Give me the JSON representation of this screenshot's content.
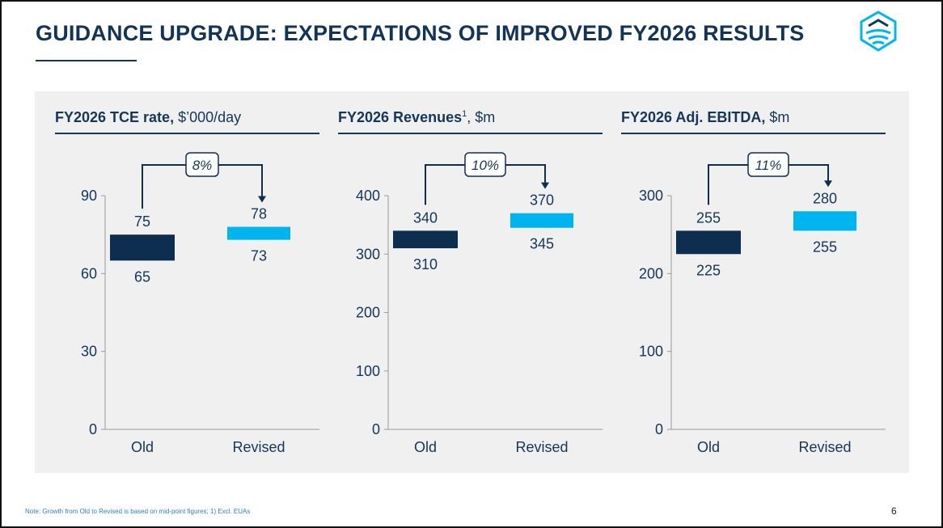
{
  "page": {
    "title": "GUIDANCE UPGRADE: EXPECTATIONS OF IMPROVED FY2026 RESULTS",
    "footnote": "Note: Growth from Old to Revised is based on mid-point figures; 1) Excl. EUAs",
    "page_number": "6",
    "logo_icon": "company-logo-icon"
  },
  "colors": {
    "old_bar": "#0e2e4f",
    "revised_bar": "#00b4f0",
    "text": "#14365a",
    "panel": "#f0f0f0"
  },
  "chart_data": [
    {
      "type": "floating-bar",
      "title_bold": "FY2026 TCE rate,",
      "title_sup": "",
      "title_rest": " $’000/day",
      "categories": [
        "Old",
        "Revised"
      ],
      "ranges": [
        [
          65,
          75
        ],
        [
          73,
          78
        ]
      ],
      "ylim": [
        0,
        90
      ],
      "yticks": [
        0,
        30,
        60,
        90
      ],
      "growth_label": "8%",
      "grid": false
    },
    {
      "type": "floating-bar",
      "title_bold": "FY2026 Revenues",
      "title_sup": "1",
      "title_rest": ", $m",
      "categories": [
        "Old",
        "Revised"
      ],
      "ranges": [
        [
          310,
          340
        ],
        [
          345,
          370
        ]
      ],
      "ylim": [
        0,
        400
      ],
      "yticks": [
        0,
        100,
        200,
        300,
        400
      ],
      "growth_label": "10%",
      "grid": false
    },
    {
      "type": "floating-bar",
      "title_bold": "FY2026 Adj. EBITDA,",
      "title_sup": "",
      "title_rest": " $m",
      "categories": [
        "Old",
        "Revised"
      ],
      "ranges": [
        [
          225,
          255
        ],
        [
          255,
          280
        ]
      ],
      "ylim": [
        0,
        300
      ],
      "yticks": [
        0,
        100,
        200,
        300
      ],
      "growth_label": "11%",
      "grid": false
    }
  ]
}
